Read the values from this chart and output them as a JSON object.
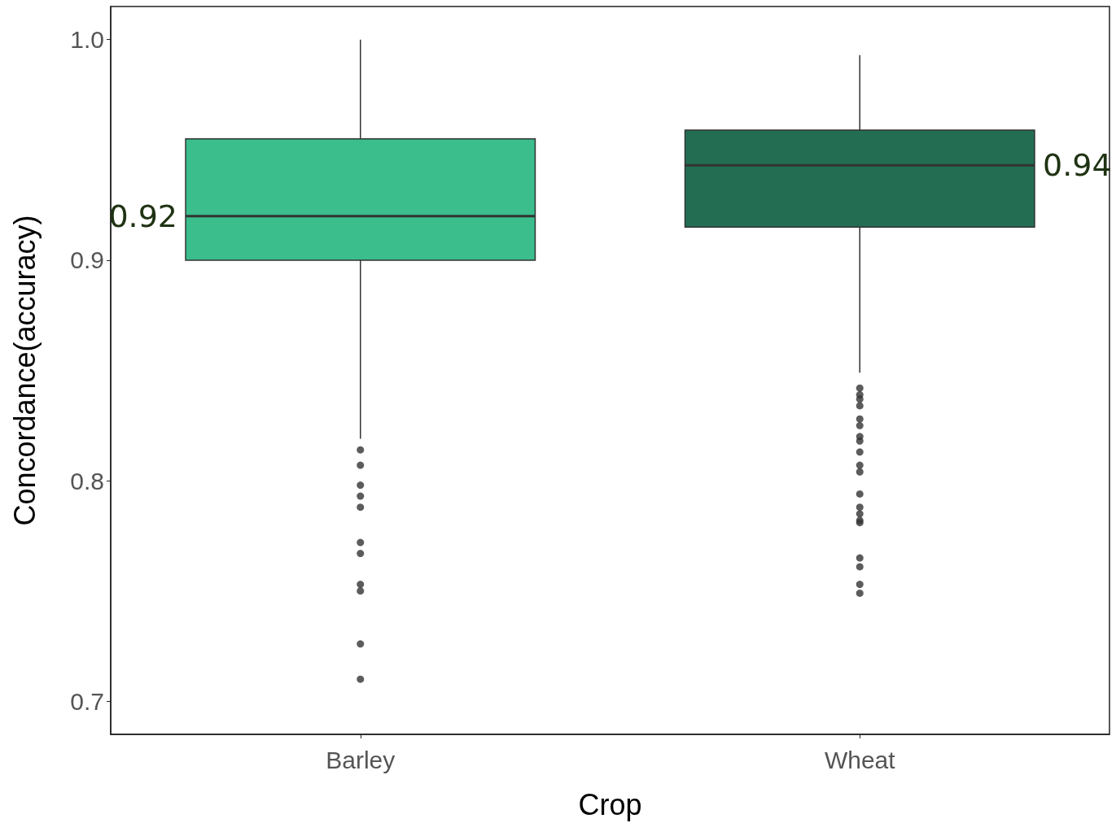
{
  "chart_data": {
    "type": "box",
    "xlabel": "Crop",
    "ylabel": "Concordance(accuracy)",
    "categories": [
      "Barley",
      "Wheat"
    ],
    "colors": [
      "#3bbd8c",
      "#236e53"
    ],
    "boxes": [
      {
        "low": 0.819,
        "q1": 0.9,
        "median": 0.92,
        "q3": 0.955,
        "high": 1.0,
        "outliers": [
          0.814,
          0.807,
          0.798,
          0.793,
          0.788,
          0.772,
          0.767,
          0.753,
          0.75,
          0.726,
          0.71
        ]
      },
      {
        "low": 0.849,
        "q1": 0.915,
        "median": 0.943,
        "q3": 0.959,
        "high": 0.993,
        "outliers": [
          0.842,
          0.839,
          0.837,
          0.834,
          0.828,
          0.825,
          0.82,
          0.818,
          0.813,
          0.807,
          0.804,
          0.794,
          0.788,
          0.785,
          0.782,
          0.781,
          0.765,
          0.761,
          0.753,
          0.749
        ]
      }
    ],
    "ylim": [
      0.685,
      1.015
    ],
    "yticks": [
      0.7,
      0.8,
      0.9,
      {
        "value": 1,
        "label": "1.0"
      }
    ],
    "grid": false,
    "annotations": [
      "0.92",
      "0.94"
    ]
  }
}
